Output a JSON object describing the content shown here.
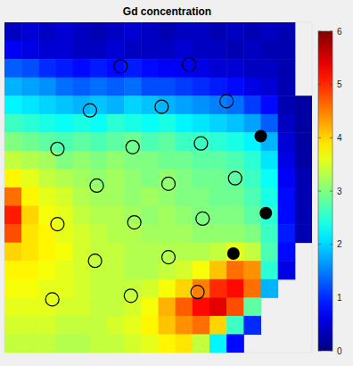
{
  "chart_data": {
    "type": "heatmap",
    "title": "Gd concentration",
    "xlim": [
      0,
      18
    ],
    "ylim": [
      0,
      18
    ],
    "tick_labels": false,
    "cells": [
      [
        0.4,
        0.5,
        0.4,
        0.5,
        0.4,
        0.3,
        0.4,
        0.5,
        0.4,
        0.3,
        0.4,
        0.4,
        0.3,
        0.4,
        0.3,
        0.4,
        0.3,
        null
      ],
      [
        0.7,
        0.6,
        0.5,
        0.5,
        0.4,
        0.4,
        0.5,
        0.4,
        0.4,
        0.4,
        0.5,
        0.4,
        0.4,
        0.3,
        0.4,
        0.3,
        0.3,
        null
      ],
      [
        1.3,
        1.2,
        1.0,
        0.9,
        0.8,
        0.9,
        0.8,
        0.9,
        0.8,
        0.7,
        0.7,
        0.6,
        0.5,
        0.5,
        0.4,
        0.4,
        0.3,
        null
      ],
      [
        1.8,
        1.7,
        1.6,
        1.4,
        1.3,
        1.4,
        1.3,
        1.4,
        1.2,
        1.2,
        1.1,
        1.0,
        0.9,
        0.8,
        0.6,
        0.5,
        0.3,
        null
      ],
      [
        2.2,
        2.1,
        2.0,
        1.9,
        1.8,
        1.9,
        1.8,
        2.0,
        1.9,
        1.8,
        1.7,
        1.6,
        1.5,
        1.4,
        1.1,
        0.8,
        0.3,
        0.2
      ],
      [
        2.6,
        2.5,
        2.4,
        2.3,
        2.4,
        2.3,
        2.5,
        2.4,
        2.3,
        2.4,
        2.2,
        2.1,
        2.0,
        1.9,
        1.7,
        1.3,
        0.4,
        0.2
      ],
      [
        3.0,
        2.9,
        2.8,
        2.7,
        2.8,
        2.7,
        2.8,
        2.9,
        2.7,
        2.8,
        2.6,
        2.6,
        2.5,
        2.4,
        2.2,
        1.8,
        0.5,
        0.2
      ],
      [
        3.4,
        3.3,
        3.2,
        3.0,
        3.1,
        3.0,
        3.1,
        3.0,
        3.0,
        2.9,
        2.9,
        2.8,
        2.8,
        2.7,
        2.5,
        2.1,
        0.6,
        0.2
      ],
      [
        3.8,
        3.6,
        3.4,
        3.3,
        3.2,
        3.1,
        3.2,
        3.1,
        3.0,
        3.1,
        3.0,
        2.9,
        2.9,
        2.8,
        2.6,
        2.3,
        0.7,
        0.3
      ],
      [
        4.6,
        3.8,
        3.6,
        3.5,
        3.3,
        3.2,
        3.2,
        3.1,
        3.2,
        3.1,
        3.0,
        3.0,
        2.9,
        2.9,
        2.7,
        2.4,
        0.8,
        0.3
      ],
      [
        5.1,
        4.0,
        3.7,
        3.6,
        3.4,
        3.3,
        3.3,
        3.2,
        3.1,
        3.2,
        3.1,
        3.0,
        3.0,
        3.0,
        2.8,
        2.5,
        0.8,
        0.3
      ],
      [
        4.8,
        3.9,
        3.8,
        3.6,
        3.5,
        3.4,
        3.3,
        3.3,
        3.2,
        3.2,
        3.2,
        3.1,
        3.1,
        3.1,
        3.0,
        2.6,
        0.9,
        0.3
      ],
      [
        4.0,
        3.9,
        3.8,
        3.7,
        3.5,
        3.4,
        3.4,
        3.3,
        3.3,
        3.3,
        3.3,
        3.3,
        3.4,
        3.6,
        3.4,
        2.7,
        0.8,
        null
      ],
      [
        3.8,
        3.8,
        3.7,
        3.6,
        3.5,
        3.4,
        3.4,
        3.3,
        3.3,
        3.4,
        3.5,
        3.7,
        4.1,
        4.6,
        4.4,
        2.5,
        0.6,
        null
      ],
      [
        3.7,
        3.7,
        3.6,
        3.6,
        3.5,
        3.4,
        3.4,
        3.4,
        3.5,
        3.7,
        4.0,
        4.5,
        5.0,
        5.2,
        4.6,
        1.8,
        null,
        null
      ],
      [
        3.6,
        3.6,
        3.6,
        3.5,
        3.5,
        3.4,
        3.4,
        3.5,
        3.7,
        4.2,
        4.7,
        5.2,
        5.4,
        4.8,
        2.8,
        null,
        null,
        null
      ],
      [
        3.5,
        3.5,
        3.5,
        3.4,
        3.4,
        3.4,
        3.5,
        3.6,
        3.8,
        4.1,
        4.4,
        4.6,
        4.0,
        2.6,
        1.0,
        null,
        null,
        null
      ],
      [
        3.4,
        3.4,
        3.4,
        3.3,
        3.3,
        3.4,
        3.4,
        3.5,
        3.6,
        3.8,
        3.9,
        3.4,
        2.2,
        0.8,
        null,
        null,
        null,
        null
      ]
    ],
    "colorbar": {
      "range": [
        0,
        6
      ],
      "ticks": [
        0,
        1,
        2,
        3,
        4,
        5,
        6
      ]
    },
    "series": [
      {
        "type": "scatter",
        "marker": "circle",
        "color": "#000000",
        "x": [
          6.8,
          10.8,
          5.0,
          9.2,
          13.0,
          3.1,
          7.5,
          11.5,
          5.4,
          9.6,
          13.5,
          3.1,
          7.6,
          11.6,
          5.3,
          9.6,
          2.8,
          7.4,
          11.3
        ],
        "values": [
          2.4,
          2.3,
          4.8,
          4.6,
          4.3,
          6.9,
          6.8,
          6.6,
          8.9,
          8.8,
          8.5,
          11.0,
          10.9,
          10.7,
          13.0,
          12.8,
          15.1,
          14.9,
          14.7
        ]
      },
      {
        "type": "scatter",
        "marker": "dot",
        "color": "#000000",
        "x": [
          15.0,
          15.3,
          13.4
        ],
        "values": [
          6.2,
          10.4,
          12.6
        ]
      }
    ]
  }
}
